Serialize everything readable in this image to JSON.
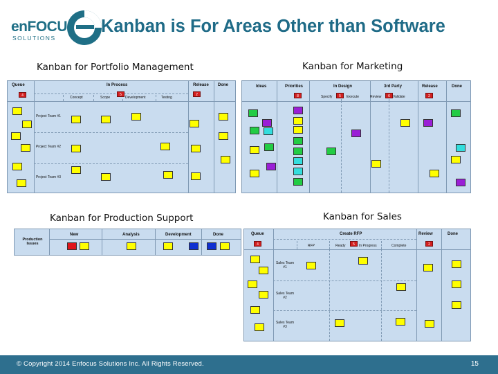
{
  "logo": {
    "word": "enFOCUS",
    "sub": "SOLUTIONS"
  },
  "slide_title": "Kanban is For Areas Other than Software",
  "panels": {
    "portfolio": {
      "label": "Kanban for Portfolio Management",
      "headers": {
        "queue": "Queue",
        "in_process": "In Process",
        "release": "Release",
        "done": "Done"
      },
      "subheaders": {
        "concept": "Concept",
        "scope": "Scope",
        "development": "Development",
        "testing": "Testing"
      },
      "wip": {
        "queue": "4",
        "in_process": "5",
        "release": "2"
      },
      "rows": [
        "Project Team #1",
        "Project Team #2",
        "Project Team #3"
      ]
    },
    "marketing": {
      "label": "Kanban for Marketing",
      "headers": {
        "ideas": "Ideas",
        "priorities": "Priorities",
        "in_design": "In Design",
        "third_party": "3rd Party",
        "release": "Release",
        "done": "Done"
      },
      "subheaders": {
        "specify": "Specify",
        "execute": "Execute",
        "review": "Review",
        "validate": "Validate"
      },
      "wip": {
        "priorities": "8",
        "in_design": "5",
        "third_party": "6",
        "release": "2"
      }
    },
    "production": {
      "label": "Kanban for Production Support",
      "row_label": "Production Issues",
      "headers": {
        "new": "New",
        "analysis": "Analysis",
        "development": "Development",
        "done": "Done"
      }
    },
    "sales": {
      "label": "Kanban for Sales",
      "headers": {
        "queue": "Queue",
        "create_rfp": "Create RFP",
        "review": "Review",
        "done": "Done"
      },
      "subheaders": {
        "rfp": "RFP",
        "ready": "Ready",
        "in_progress": "In Progress",
        "complete": "Complete"
      },
      "wip": {
        "queue": "4",
        "create_rfp": "5",
        "review": "2"
      },
      "rows": [
        "Sales Team #1",
        "Sales Team #2",
        "Sales Team #3"
      ]
    }
  },
  "card_colors": {
    "yellow": "#ffff00",
    "green": "#22cc44",
    "purple": "#9a1fd6",
    "cyan": "#33dddd",
    "blue": "#1030d0",
    "red": "#e0141a",
    "wip_red": "#d21f1f",
    "board_blue": "#c9dcef"
  },
  "footer": {
    "copyright": "© Copyright 2014 Enfocus Solutions Inc. All Rights Reserved.",
    "page_number": "15"
  },
  "icons": [
    "enfocus-logo-mark"
  ]
}
